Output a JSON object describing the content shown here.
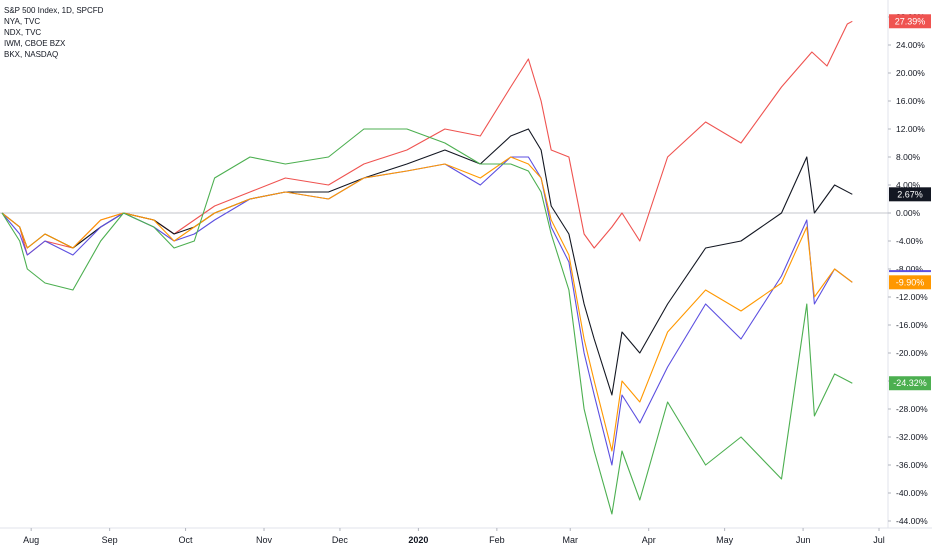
{
  "legend": {
    "main": "S&P 500 Index, 1D, SPCFD",
    "items": [
      "NYA, TVC",
      "NDX, TVC",
      "IWM, CBOE BZX",
      "BKX, NASDAQ"
    ]
  },
  "chart_data": {
    "type": "line",
    "title": "",
    "xlabel": "",
    "ylabel": "",
    "y_unit": "%",
    "ylim": [
      -45,
      30
    ],
    "grid": false,
    "legend_placement": "top-left",
    "x_ticks": [
      {
        "label": "Aug",
        "date": "2019-08-01"
      },
      {
        "label": "Sep",
        "date": "2019-09-01"
      },
      {
        "label": "Oct",
        "date": "2019-10-01"
      },
      {
        "label": "Nov",
        "date": "2019-11-01"
      },
      {
        "label": "Dec",
        "date": "2019-12-01"
      },
      {
        "label": "2020",
        "date": "2020-01-01",
        "bold": true
      },
      {
        "label": "Feb",
        "date": "2020-02-01"
      },
      {
        "label": "Mar",
        "date": "2020-03-01"
      },
      {
        "label": "Apr",
        "date": "2020-04-01"
      },
      {
        "label": "May",
        "date": "2020-05-01"
      },
      {
        "label": "Jun",
        "date": "2020-06-01"
      },
      {
        "label": "Jul",
        "date": "2020-07-01"
      }
    ],
    "y_ticks": [
      "28.00%",
      "24.00%",
      "20.00%",
      "16.00%",
      "12.00%",
      "8.00%",
      "4.00%",
      "0.00%",
      "-4.00%",
      "-8.00%",
      "-12.00%",
      "-16.00%",
      "-20.00%",
      "-24.00%",
      "-28.00%",
      "-32.00%",
      "-36.00%",
      "-40.00%",
      "-44.00%"
    ],
    "y_tick_values": [
      28,
      24,
      20,
      16,
      12,
      8,
      4,
      0,
      -4,
      -8,
      -12,
      -16,
      -20,
      -24,
      -28,
      -32,
      -36,
      -40,
      -44
    ],
    "baseline": 0,
    "series": [
      {
        "color": "#ef5350",
        "last_label": "27.39%",
        "points": [
          [
            "2019-07-26",
            0
          ],
          [
            "2019-08-02",
            -2
          ],
          [
            "2019-08-05",
            -6
          ],
          [
            "2019-08-12",
            -4
          ],
          [
            "2019-08-23",
            -5
          ],
          [
            "2019-09-03",
            -1
          ],
          [
            "2019-09-12",
            0
          ],
          [
            "2019-09-24",
            -1
          ],
          [
            "2019-10-02",
            -3
          ],
          [
            "2019-10-10",
            -1
          ],
          [
            "2019-10-18",
            1
          ],
          [
            "2019-11-01",
            3
          ],
          [
            "2019-11-15",
            5
          ],
          [
            "2019-12-02",
            4
          ],
          [
            "2019-12-16",
            7
          ],
          [
            "2020-01-02",
            9
          ],
          [
            "2020-01-17",
            12
          ],
          [
            "2020-01-31",
            11
          ],
          [
            "2020-02-12",
            18
          ],
          [
            "2020-02-19",
            22
          ],
          [
            "2020-02-24",
            16
          ],
          [
            "2020-02-28",
            9
          ],
          [
            "2020-03-06",
            8
          ],
          [
            "2020-03-12",
            -3
          ],
          [
            "2020-03-16",
            -5
          ],
          [
            "2020-03-23",
            -2
          ],
          [
            "2020-03-27",
            0
          ],
          [
            "2020-04-03",
            -4
          ],
          [
            "2020-04-14",
            8
          ],
          [
            "2020-04-29",
            13
          ],
          [
            "2020-05-13",
            10
          ],
          [
            "2020-05-29",
            18
          ],
          [
            "2020-06-10",
            23
          ],
          [
            "2020-06-16",
            21
          ],
          [
            "2020-06-24",
            27
          ],
          [
            "2020-06-26",
            27.39
          ]
        ]
      },
      {
        "color": "#131722",
        "last_label": "2.67%",
        "points": [
          [
            "2019-07-26",
            0
          ],
          [
            "2019-08-02",
            -2
          ],
          [
            "2019-08-05",
            -5
          ],
          [
            "2019-08-12",
            -3
          ],
          [
            "2019-08-23",
            -5
          ],
          [
            "2019-09-03",
            -2
          ],
          [
            "2019-09-12",
            0
          ],
          [
            "2019-09-24",
            -1
          ],
          [
            "2019-10-02",
            -3
          ],
          [
            "2019-10-10",
            -2
          ],
          [
            "2019-10-18",
            0
          ],
          [
            "2019-11-01",
            2
          ],
          [
            "2019-11-15",
            3
          ],
          [
            "2019-12-02",
            3
          ],
          [
            "2019-12-16",
            5
          ],
          [
            "2020-01-02",
            7
          ],
          [
            "2020-01-17",
            9
          ],
          [
            "2020-01-31",
            7
          ],
          [
            "2020-02-12",
            11
          ],
          [
            "2020-02-19",
            12
          ],
          [
            "2020-02-24",
            9
          ],
          [
            "2020-02-28",
            1
          ],
          [
            "2020-03-06",
            -3
          ],
          [
            "2020-03-12",
            -13
          ],
          [
            "2020-03-16",
            -18
          ],
          [
            "2020-03-23",
            -26
          ],
          [
            "2020-03-27",
            -17
          ],
          [
            "2020-04-03",
            -20
          ],
          [
            "2020-04-14",
            -13
          ],
          [
            "2020-04-29",
            -5
          ],
          [
            "2020-05-13",
            -4
          ],
          [
            "2020-05-29",
            0
          ],
          [
            "2020-06-08",
            8
          ],
          [
            "2020-06-11",
            0
          ],
          [
            "2020-06-19",
            4
          ],
          [
            "2020-06-26",
            2.67
          ]
        ]
      },
      {
        "color": "#5c4fe0",
        "last_label": "-9.90%",
        "points": [
          [
            "2019-07-26",
            0
          ],
          [
            "2019-08-02",
            -3
          ],
          [
            "2019-08-05",
            -6
          ],
          [
            "2019-08-12",
            -4
          ],
          [
            "2019-08-23",
            -6
          ],
          [
            "2019-09-03",
            -2
          ],
          [
            "2019-09-12",
            0
          ],
          [
            "2019-09-24",
            -2
          ],
          [
            "2019-10-02",
            -4
          ],
          [
            "2019-10-10",
            -3
          ],
          [
            "2019-10-18",
            -1
          ],
          [
            "2019-11-01",
            2
          ],
          [
            "2019-11-15",
            3
          ],
          [
            "2019-12-02",
            2
          ],
          [
            "2019-12-16",
            5
          ],
          [
            "2020-01-02",
            6
          ],
          [
            "2020-01-17",
            7
          ],
          [
            "2020-01-31",
            4
          ],
          [
            "2020-02-12",
            8
          ],
          [
            "2020-02-19",
            8
          ],
          [
            "2020-02-24",
            5
          ],
          [
            "2020-02-28",
            -2
          ],
          [
            "2020-03-06",
            -7
          ],
          [
            "2020-03-12",
            -20
          ],
          [
            "2020-03-16",
            -26
          ],
          [
            "2020-03-23",
            -36
          ],
          [
            "2020-03-27",
            -26
          ],
          [
            "2020-04-03",
            -30
          ],
          [
            "2020-04-14",
            -22
          ],
          [
            "2020-04-29",
            -13
          ],
          [
            "2020-05-13",
            -18
          ],
          [
            "2020-05-29",
            -9
          ],
          [
            "2020-06-08",
            -1
          ],
          [
            "2020-06-11",
            -13
          ],
          [
            "2020-06-19",
            -8
          ],
          [
            "2020-06-26",
            -9.9
          ]
        ]
      },
      {
        "color": "#ff9800",
        "last_label": "-9.90%",
        "points": [
          [
            "2019-07-26",
            0
          ],
          [
            "2019-08-02",
            -2
          ],
          [
            "2019-08-05",
            -5
          ],
          [
            "2019-08-12",
            -3
          ],
          [
            "2019-08-23",
            -5
          ],
          [
            "2019-09-03",
            -1
          ],
          [
            "2019-09-12",
            0
          ],
          [
            "2019-09-24",
            -1
          ],
          [
            "2019-10-02",
            -4
          ],
          [
            "2019-10-10",
            -2
          ],
          [
            "2019-10-18",
            0
          ],
          [
            "2019-11-01",
            2
          ],
          [
            "2019-11-15",
            3
          ],
          [
            "2019-12-02",
            2
          ],
          [
            "2019-12-16",
            5
          ],
          [
            "2020-01-02",
            6
          ],
          [
            "2020-01-17",
            7
          ],
          [
            "2020-01-31",
            5
          ],
          [
            "2020-02-12",
            8
          ],
          [
            "2020-02-19",
            7
          ],
          [
            "2020-02-24",
            5
          ],
          [
            "2020-02-28",
            -1
          ],
          [
            "2020-03-06",
            -6
          ],
          [
            "2020-03-12",
            -18
          ],
          [
            "2020-03-16",
            -24
          ],
          [
            "2020-03-23",
            -34
          ],
          [
            "2020-03-27",
            -24
          ],
          [
            "2020-04-03",
            -27
          ],
          [
            "2020-04-14",
            -17
          ],
          [
            "2020-04-29",
            -11
          ],
          [
            "2020-05-13",
            -14
          ],
          [
            "2020-05-29",
            -10
          ],
          [
            "2020-06-08",
            -2
          ],
          [
            "2020-06-11",
            -12
          ],
          [
            "2020-06-19",
            -8
          ],
          [
            "2020-06-26",
            -9.9
          ]
        ]
      },
      {
        "color": "#4caf50",
        "last_label": "-24.32%",
        "points": [
          [
            "2019-07-26",
            0
          ],
          [
            "2019-08-02",
            -4
          ],
          [
            "2019-08-05",
            -8
          ],
          [
            "2019-08-12",
            -10
          ],
          [
            "2019-08-23",
            -11
          ],
          [
            "2019-09-03",
            -4
          ],
          [
            "2019-09-12",
            0
          ],
          [
            "2019-09-24",
            -2
          ],
          [
            "2019-10-02",
            -5
          ],
          [
            "2019-10-10",
            -4
          ],
          [
            "2019-10-18",
            5
          ],
          [
            "2019-11-01",
            8
          ],
          [
            "2019-11-15",
            7
          ],
          [
            "2019-12-02",
            8
          ],
          [
            "2019-12-16",
            12
          ],
          [
            "2020-01-02",
            12
          ],
          [
            "2020-01-17",
            10
          ],
          [
            "2020-01-31",
            7
          ],
          [
            "2020-02-12",
            7
          ],
          [
            "2020-02-19",
            6
          ],
          [
            "2020-02-24",
            3
          ],
          [
            "2020-02-28",
            -3
          ],
          [
            "2020-03-06",
            -11
          ],
          [
            "2020-03-12",
            -28
          ],
          [
            "2020-03-16",
            -34
          ],
          [
            "2020-03-23",
            -43
          ],
          [
            "2020-03-27",
            -34
          ],
          [
            "2020-04-03",
            -41
          ],
          [
            "2020-04-14",
            -27
          ],
          [
            "2020-04-29",
            -36
          ],
          [
            "2020-05-13",
            -32
          ],
          [
            "2020-05-29",
            -38
          ],
          [
            "2020-06-08",
            -13
          ],
          [
            "2020-06-11",
            -29
          ],
          [
            "2020-06-19",
            -23
          ],
          [
            "2020-06-26",
            -24.32
          ]
        ]
      }
    ],
    "price_labels": [
      {
        "text": "27.39%",
        "value": 27.39,
        "color": "#ef5350"
      },
      {
        "text": "2.67%",
        "value": 2.67,
        "color": "#131722"
      },
      {
        "text": "-9.90%",
        "value": -9.9,
        "color": "#ff9800"
      },
      {
        "text": "-24.32%",
        "value": -24.32,
        "color": "#4caf50"
      }
    ],
    "extra_tick_markers": [
      {
        "value": -8.3,
        "color": "#5c4fe0"
      }
    ]
  }
}
